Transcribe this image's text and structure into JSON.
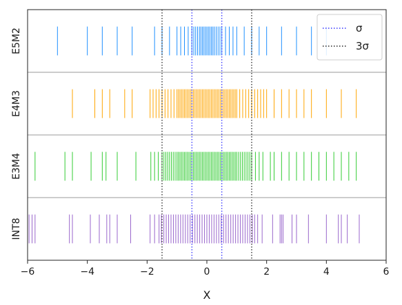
{
  "chart_data": {
    "type": "rug",
    "xlabel": "X",
    "xlim": [
      -6,
      6
    ],
    "xticks": [
      -6,
      -4,
      -2,
      0,
      2,
      4,
      6
    ],
    "xtick_labels": [
      "−6",
      "−4",
      "−2",
      "0",
      "2",
      "4",
      "6"
    ],
    "grid": false,
    "legend": {
      "placement": "top-right",
      "entries": [
        {
          "label": "σ",
          "color": "#3333ff",
          "style": "dotted"
        },
        {
          "label": "3σ",
          "color": "#222222",
          "style": "dotted"
        }
      ]
    },
    "reference_lines": [
      {
        "name": "sigma",
        "x": [
          -0.5,
          0.5
        ],
        "color": "#3333ff"
      },
      {
        "name": "three-sigma",
        "x": [
          -1.5,
          1.5
        ],
        "color": "#222222"
      }
    ],
    "series": [
      {
        "name": "E5M2",
        "color": "#1e90ff",
        "values": [
          -5.0,
          -4.0,
          -3.5,
          -3.0,
          -2.5,
          -1.75,
          -1.5,
          -1.25,
          -1.0,
          -0.875,
          -0.75,
          -0.625,
          -0.5,
          -0.4375,
          -0.375,
          -0.3125,
          -0.25,
          -0.2,
          -0.15,
          -0.1,
          -0.05,
          0.0,
          0.05,
          0.1,
          0.15,
          0.2,
          0.25,
          0.3125,
          0.375,
          0.4375,
          0.5,
          0.625,
          0.75,
          0.875,
          1.0,
          1.25,
          1.5,
          1.75,
          2.0,
          2.5,
          3.0,
          3.5,
          4.0
        ]
      },
      {
        "name": "E4M3",
        "color": "#ffa500",
        "values": [
          -4.5,
          -3.75,
          -3.5,
          -3.25,
          -2.75,
          -2.5,
          -1.9,
          -1.8,
          -1.7,
          -1.6,
          -1.5,
          -1.4,
          -1.3,
          -1.2,
          -1.1,
          -1.0,
          -0.95,
          -0.9,
          -0.85,
          -0.8,
          -0.75,
          -0.7,
          -0.65,
          -0.6,
          -0.55,
          -0.5,
          -0.45,
          -0.4,
          -0.35,
          -0.3,
          -0.25,
          -0.2,
          -0.15,
          -0.1,
          -0.05,
          0.0,
          0.05,
          0.1,
          0.15,
          0.2,
          0.25,
          0.3,
          0.35,
          0.4,
          0.45,
          0.5,
          0.55,
          0.6,
          0.65,
          0.7,
          0.75,
          0.8,
          0.85,
          0.9,
          0.95,
          1.0,
          1.1,
          1.2,
          1.3,
          1.4,
          1.5,
          1.6,
          1.7,
          1.8,
          1.9,
          2.0,
          2.25,
          2.5,
          2.75,
          3.0,
          3.25,
          3.5,
          4.0,
          4.5,
          5.0
        ]
      },
      {
        "name": "E3M4",
        "color": "#33cc33",
        "values": [
          -5.75,
          -4.75,
          -4.5,
          -3.875,
          -3.5,
          -3.375,
          -3.0,
          -2.375,
          -1.875,
          -1.75,
          -1.625,
          -1.5,
          -1.4375,
          -1.375,
          -1.3125,
          -1.25,
          -1.1875,
          -1.125,
          -1.0625,
          -1.0,
          -0.95,
          -0.9,
          -0.85,
          -0.8,
          -0.75,
          -0.7,
          -0.65,
          -0.6,
          -0.55,
          -0.5,
          -0.45,
          -0.4,
          -0.35,
          -0.3,
          -0.25,
          -0.2,
          -0.15,
          -0.1,
          -0.05,
          0.0,
          0.05,
          0.1,
          0.15,
          0.2,
          0.25,
          0.3,
          0.35,
          0.4,
          0.45,
          0.5,
          0.55,
          0.6,
          0.65,
          0.7,
          0.75,
          0.8,
          0.85,
          0.9,
          0.95,
          1.0,
          1.0625,
          1.125,
          1.1875,
          1.25,
          1.3125,
          1.375,
          1.4375,
          1.5,
          1.625,
          1.75,
          1.875,
          2.125,
          2.25,
          2.5,
          2.75,
          3.0,
          3.25,
          3.5,
          3.75,
          4.0,
          4.25,
          4.5,
          4.75,
          5.0
        ]
      },
      {
        "name": "INT8",
        "color": "#9966cc",
        "values": [
          -5.95,
          -5.85,
          -5.75,
          -4.6,
          -4.5,
          -3.9,
          -3.6,
          -3.35,
          -3.25,
          -3.0,
          -2.55,
          -1.9,
          -1.75,
          -1.6,
          -1.52,
          -1.44,
          -1.36,
          -1.28,
          -1.2,
          -1.12,
          -1.04,
          -0.96,
          -0.88,
          -0.8,
          -0.72,
          -0.64,
          -0.56,
          -0.48,
          -0.4,
          -0.32,
          -0.24,
          -0.16,
          -0.08,
          0.0,
          0.08,
          0.16,
          0.24,
          0.32,
          0.4,
          0.48,
          0.56,
          0.64,
          0.72,
          0.8,
          0.88,
          0.96,
          1.04,
          1.12,
          1.2,
          1.28,
          1.36,
          1.44,
          1.52,
          1.6,
          1.7,
          1.85,
          2.2,
          2.45,
          2.5,
          2.55,
          2.85,
          3.0,
          3.4,
          4.0,
          4.4,
          4.5,
          4.7,
          5.1
        ]
      }
    ]
  }
}
